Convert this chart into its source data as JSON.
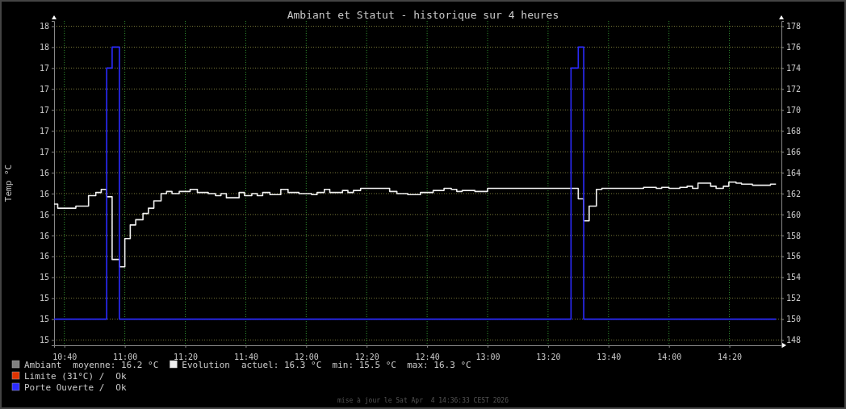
{
  "chart_data": {
    "type": "step",
    "title": "Ambiant et Statut - historique sur 4 heures",
    "ylabel": "Temp °C",
    "xlim": [
      10.61,
      14.62
    ],
    "ylim": [
      14.75,
      17.85
    ],
    "y2lim": [
      147.5,
      178.5
    ],
    "xticks": [
      {
        "value": 10.6667,
        "label": "10:40"
      },
      {
        "value": 11,
        "label": "11:00"
      },
      {
        "value": 11.3333,
        "label": "11:20"
      },
      {
        "value": 11.6667,
        "label": "11:40"
      },
      {
        "value": 12,
        "label": "12:00"
      },
      {
        "value": 12.3333,
        "label": "12:20"
      },
      {
        "value": 12.6667,
        "label": "12:40"
      },
      {
        "value": 13,
        "label": "13:00"
      },
      {
        "value": 13.3333,
        "label": "13:20"
      },
      {
        "value": 13.6667,
        "label": "13:40"
      },
      {
        "value": 14,
        "label": "14:00"
      },
      {
        "value": 14.3333,
        "label": "14:20"
      }
    ],
    "yticks": [
      {
        "value": 14.8,
        "label": "15"
      },
      {
        "value": 15,
        "label": "15"
      },
      {
        "value": 15.2,
        "label": "15"
      },
      {
        "value": 15.4,
        "label": "15"
      },
      {
        "value": 15.6,
        "label": "16"
      },
      {
        "value": 15.8,
        "label": "16"
      },
      {
        "value": 16,
        "label": "16"
      },
      {
        "value": 16.2,
        "label": "16"
      },
      {
        "value": 16.4,
        "label": "16"
      },
      {
        "value": 16.6,
        "label": "17"
      },
      {
        "value": 16.8,
        "label": "17"
      },
      {
        "value": 17,
        "label": "17"
      },
      {
        "value": 17.2,
        "label": "17"
      },
      {
        "value": 17.4,
        "label": "17"
      },
      {
        "value": 17.6,
        "label": "18"
      },
      {
        "value": 17.8,
        "label": "18"
      }
    ],
    "y2ticks": [
      148,
      150,
      152,
      154,
      156,
      158,
      160,
      162,
      164,
      166,
      168,
      170,
      172,
      174,
      176,
      178
    ],
    "grid": true,
    "legend": "bottom left",
    "series": [
      {
        "name": "Ambiant",
        "color": "#808080",
        "values": [
          null
        ]
      },
      {
        "name": "Evolution",
        "color": "#f0f0f0",
        "x": [
          10.61,
          10.63,
          10.73,
          10.8,
          10.84,
          10.87,
          10.9,
          10.93,
          10.97,
          11.0,
          11.03,
          11.06,
          11.1,
          11.13,
          11.16,
          11.2,
          11.23,
          11.26,
          11.3,
          11.36,
          11.4,
          11.46,
          11.5,
          11.53,
          11.56,
          11.63,
          11.66,
          11.7,
          11.73,
          11.76,
          11.8,
          11.86,
          11.9,
          11.96,
          12.03,
          12.06,
          12.1,
          12.13,
          12.2,
          12.23,
          12.26,
          12.3,
          12.46,
          12.5,
          12.56,
          12.63,
          12.7,
          12.76,
          12.8,
          12.83,
          12.86,
          12.93,
          13.0,
          13.46,
          13.5,
          13.53,
          13.56,
          13.6,
          13.63,
          13.86,
          13.93,
          13.96,
          14.0,
          14.06,
          14.1,
          14.13,
          14.16,
          14.23,
          14.26,
          14.3,
          14.33,
          14.37,
          14.4,
          14.46,
          14.5,
          14.56,
          14.59
        ],
        "values": [
          16.1,
          16.06,
          16.08,
          16.18,
          16.21,
          16.24,
          16.17,
          15.57,
          15.5,
          15.77,
          15.9,
          15.95,
          16.01,
          16.06,
          16.13,
          16.2,
          16.22,
          16.2,
          16.22,
          16.24,
          16.21,
          16.2,
          16.18,
          16.2,
          16.16,
          16.21,
          16.18,
          16.2,
          16.18,
          16.21,
          16.19,
          16.24,
          16.21,
          16.2,
          16.19,
          16.21,
          16.24,
          16.21,
          16.23,
          16.21,
          16.23,
          16.25,
          16.22,
          16.2,
          16.19,
          16.21,
          16.23,
          16.25,
          16.24,
          16.22,
          16.23,
          16.22,
          16.25,
          16.25,
          16.15,
          15.94,
          16.08,
          16.24,
          16.25,
          16.26,
          16.25,
          16.26,
          16.25,
          16.26,
          16.27,
          16.25,
          16.3,
          16.27,
          16.25,
          16.27,
          16.31,
          16.3,
          16.29,
          16.28,
          16.28,
          16.29,
          16.29
        ]
      },
      {
        "name": "Limite (31°C) /",
        "color": "#dd3300",
        "values": [
          null
        ]
      },
      {
        "name": "Porte Ouverte /",
        "color": "#2b2bff",
        "axis": "y2",
        "x": [
          10.61,
          10.9,
          10.93,
          10.97,
          13.46,
          13.5,
          13.53,
          14.59
        ],
        "values": [
          150,
          174,
          176,
          150,
          174,
          176,
          150,
          150
        ]
      }
    ],
    "annotations": [
      "moyenne: 16.2 °C",
      "actuel: 16.3 °C  min: 15.5 °C  max: 16.3 °C",
      "Ok",
      "Ok",
      "mise à jour le Sat Apr  4 14:36:33 CEST 2026"
    ]
  }
}
